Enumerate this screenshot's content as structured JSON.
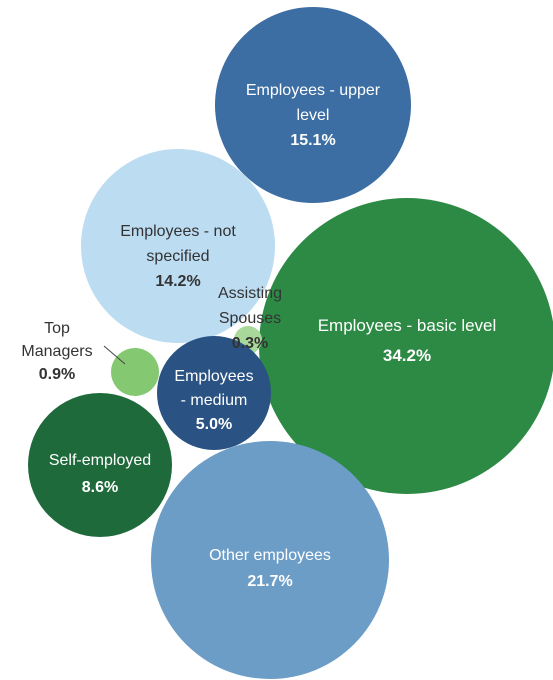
{
  "chart_data": {
    "type": "bubble",
    "title": "",
    "unit": "%",
    "series": [
      {
        "label_lines": [
          "Employees - upper",
          "level"
        ],
        "value": 15.1,
        "value_label": "15.1%",
        "color": "#3c6ea3",
        "text_color": "#ffffff"
      },
      {
        "label_lines": [
          "Employees - not",
          "specified"
        ],
        "value": 14.2,
        "value_label": "14.2%",
        "color": "#bcdcf2",
        "text_color": "#333333"
      },
      {
        "label_lines": [
          "Employees - basic level"
        ],
        "value": 34.2,
        "value_label": "34.2%",
        "color": "#2d8a45",
        "text_color": "#ffffff"
      },
      {
        "label_lines": [
          "Assisting",
          "Spouses"
        ],
        "value": 0.3,
        "value_label": "0.3%",
        "color": "#a8d89a",
        "text_color": "#333333"
      },
      {
        "label_lines": [
          "Top",
          "Managers"
        ],
        "value": 0.9,
        "value_label": "0.9%",
        "color": "#84c871",
        "text_color": "#333333"
      },
      {
        "label_lines": [
          "Employees",
          "- medium"
        ],
        "value": 5.0,
        "value_label": "5.0%",
        "color": "#2a5283",
        "text_color": "#ffffff"
      },
      {
        "label_lines": [
          "Self-employed"
        ],
        "value": 8.6,
        "value_label": "8.6%",
        "color": "#1f6a3b",
        "text_color": "#ffffff"
      },
      {
        "label_lines": [
          "Other employees"
        ],
        "value": 21.7,
        "value_label": "21.7%",
        "color": "#6b9dc7",
        "text_color": "#ffffff"
      }
    ]
  }
}
